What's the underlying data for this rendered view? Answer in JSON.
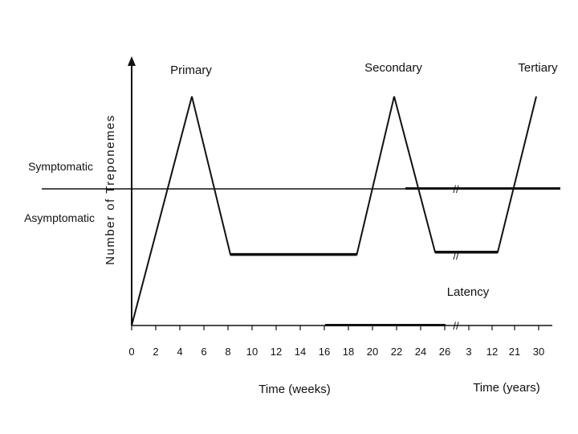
{
  "chart_data": {
    "type": "line",
    "title": "",
    "ylabel": "Number of Treponemes",
    "x_weeks": {
      "label": "Time (weeks)",
      "ticks": [
        "0",
        "2",
        "4",
        "6",
        "8",
        "10",
        "12",
        "14",
        "16",
        "18",
        "20",
        "22",
        "24",
        "26"
      ]
    },
    "x_years": {
      "label": "Time (years)",
      "ticks": [
        "3",
        "12",
        "21",
        "30"
      ]
    },
    "threshold": {
      "above_label": "Symptomatic",
      "below_label": "Asymptomatic"
    },
    "phases": [
      {
        "name": "Primary",
        "peak_week": 5
      },
      {
        "name": "Secondary",
        "peak_week": 22
      },
      {
        "name": "Tertiary"
      }
    ],
    "latency_label": "Latency",
    "series": [
      {
        "points_weeks": [
          [
            0,
            0
          ],
          [
            5,
            1.0
          ],
          [
            8.2,
            0.31
          ],
          [
            18.7,
            0.31
          ],
          [
            21.8,
            1.0
          ],
          [
            25.2,
            0.32
          ],
          [
            27,
            0.32
          ]
        ],
        "points_years": [
          [
            3,
            0.32
          ],
          [
            12,
            0.32
          ],
          [
            30,
            1.0
          ]
        ]
      }
    ],
    "break_marker": "//",
    "grid": false
  }
}
